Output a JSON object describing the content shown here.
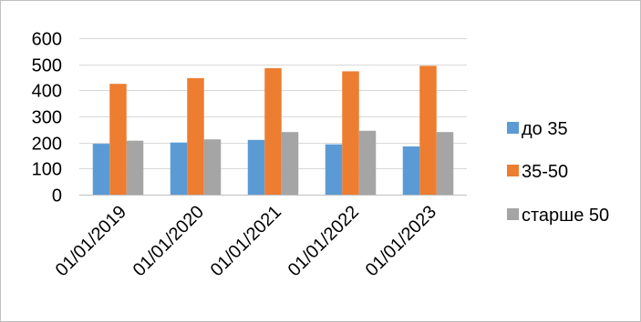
{
  "chart_data": {
    "type": "bar",
    "categories": [
      "01/01/2019",
      "01/01/2020",
      "01/01/2021",
      "01/01/2022",
      "01/01/2023"
    ],
    "series": [
      {
        "name": "до 35",
        "color": "#5B9BD5",
        "values": [
          195,
          200,
          210,
          193,
          185
        ]
      },
      {
        "name": "35-50",
        "color": "#ED7D31",
        "values": [
          425,
          447,
          485,
          473,
          494
        ]
      },
      {
        "name": "старше 50",
        "color": "#A5A5A5",
        "values": [
          207,
          212,
          240,
          245,
          240
        ]
      }
    ],
    "ylim": [
      0,
      600
    ],
    "yticks": [
      0,
      100,
      200,
      300,
      400,
      500,
      600
    ],
    "grid": true,
    "legend": "right"
  }
}
